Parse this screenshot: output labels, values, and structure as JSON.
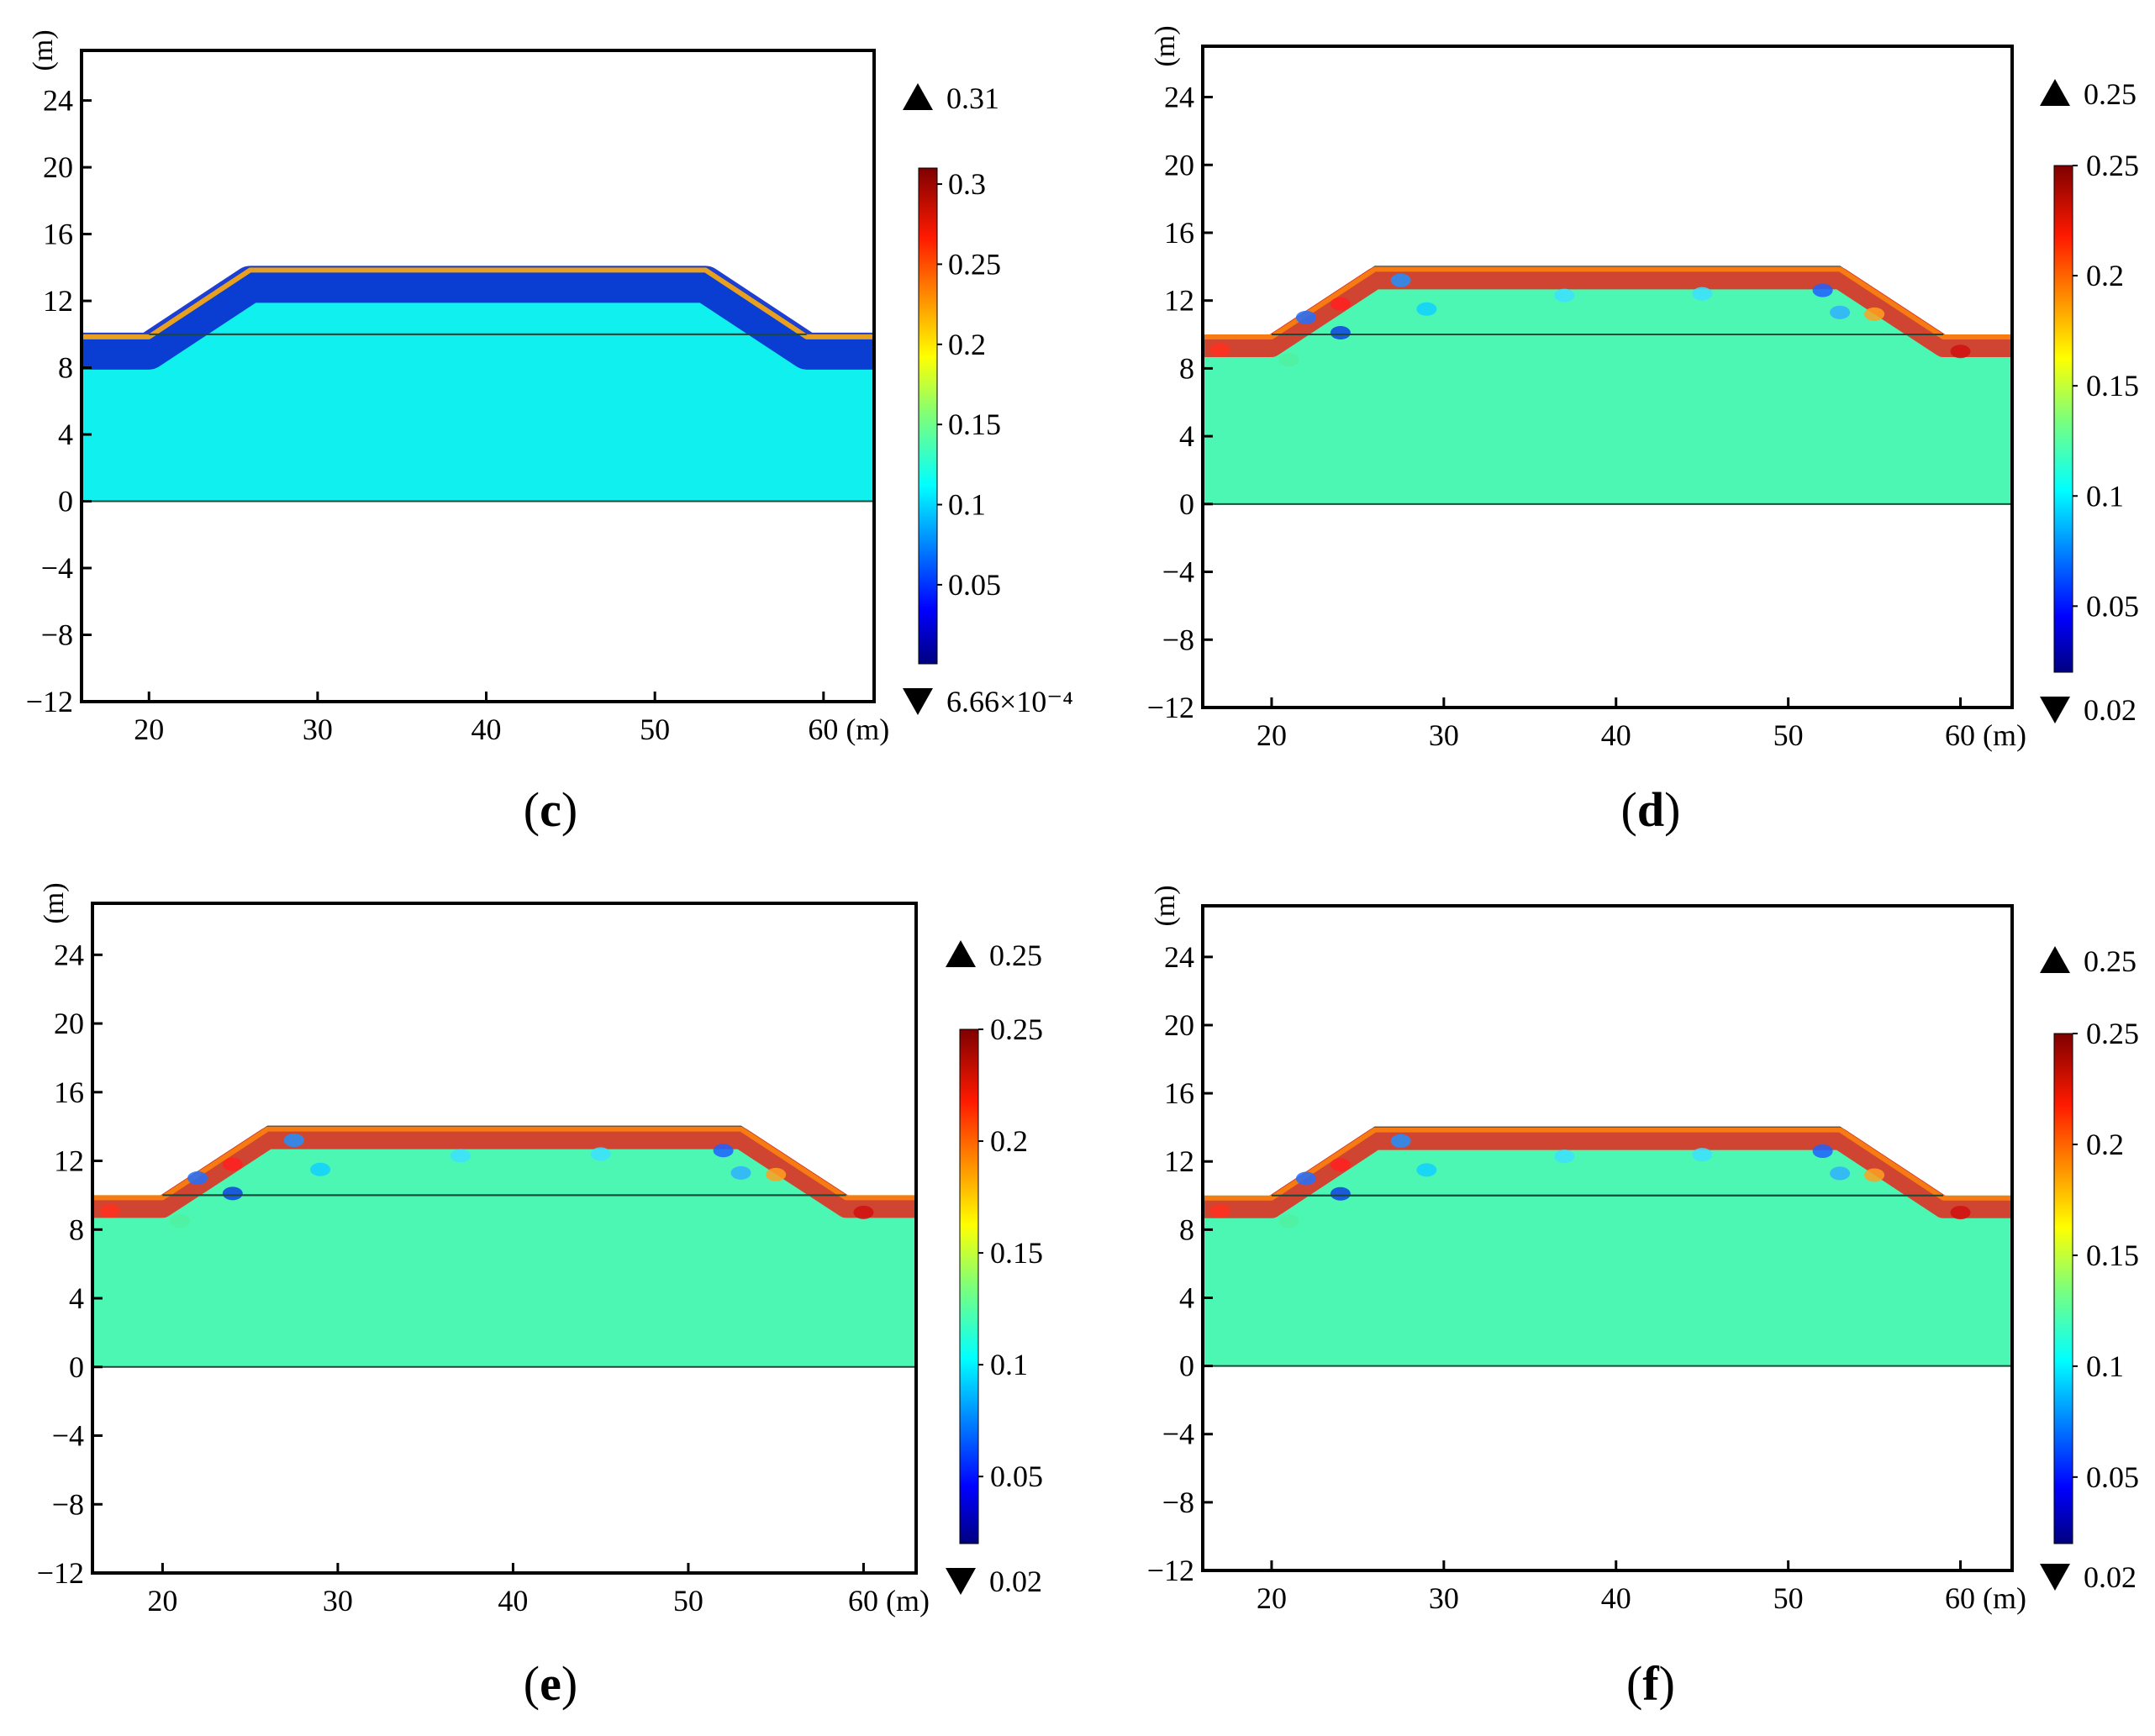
{
  "chart_data": [
    {
      "id": "c",
      "type": "heatmap",
      "panel_label": "c",
      "ylabel": "(m)",
      "xunit": "(m)",
      "xlim": [
        16,
        63
      ],
      "ylim": [
        -12,
        27
      ],
      "x_ticks": [
        20,
        30,
        40,
        50,
        60
      ],
      "x_tick_labels": [
        "20",
        "30",
        "40",
        "50",
        "60"
      ],
      "y_ticks": [
        24,
        20,
        16,
        12,
        8,
        4,
        0,
        -4,
        -8,
        -12
      ],
      "y_tick_labels": [
        "24",
        "20",
        "16",
        "12",
        "8",
        "4",
        "0",
        "−4",
        "−8",
        "−12"
      ],
      "embankment": {
        "base_y": 10,
        "crest_y": 14,
        "toe_left_x": 20,
        "crest_left_x": 26,
        "crest_right_x": 53,
        "toe_right_x": 59
      },
      "foundation": {
        "top_y": 10,
        "bottom_y": 0
      },
      "colorbar": {
        "max_label": "0.31",
        "min_label": "6.66×10⁻⁴",
        "range": [
          0.000666,
          0.31
        ],
        "ticks": [
          0.3,
          0.25,
          0.2,
          0.15,
          0.1,
          0.05
        ],
        "tick_labels": [
          "0.3",
          "0.25",
          "0.2",
          "0.15",
          "0.1",
          "0.05"
        ]
      },
      "field": {
        "background": "#10f0ee",
        "surface_layer": "#0a2fd0",
        "rim": "#e8a020"
      }
    },
    {
      "id": "d",
      "type": "heatmap",
      "panel_label": "d",
      "ylabel": "(m)",
      "xunit": "(m)",
      "xlim": [
        16,
        63
      ],
      "ylim": [
        -12,
        27
      ],
      "x_ticks": [
        20,
        30,
        40,
        50,
        60
      ],
      "x_tick_labels": [
        "20",
        "30",
        "40",
        "50",
        "60"
      ],
      "y_ticks": [
        24,
        20,
        16,
        12,
        8,
        4,
        0,
        -4,
        -8,
        -12
      ],
      "y_tick_labels": [
        "24",
        "20",
        "16",
        "12",
        "8",
        "4",
        "0",
        "−4",
        "−8",
        "−12"
      ],
      "embankment": {
        "base_y": 10,
        "crest_y": 14,
        "toe_left_x": 20,
        "crest_left_x": 26,
        "crest_right_x": 53,
        "toe_right_x": 59
      },
      "foundation": {
        "top_y": 10,
        "bottom_y": 0
      },
      "colorbar": {
        "max_label": "0.25",
        "min_label": "0.02",
        "range": [
          0.02,
          0.25
        ],
        "ticks": [
          0.25,
          0.2,
          0.15,
          0.1,
          0.05
        ],
        "tick_labels": [
          "0.25",
          "0.2",
          "0.15",
          "0.1",
          "0.05"
        ]
      },
      "field": {
        "background": "#4cf7b4",
        "surface_layer": "#e8261a",
        "rim": "#f57b12"
      }
    },
    {
      "id": "e",
      "type": "heatmap",
      "panel_label": "e",
      "ylabel": "(m)",
      "xunit": "(m)",
      "xlim": [
        16,
        63
      ],
      "ylim": [
        -12,
        27
      ],
      "x_ticks": [
        20,
        30,
        40,
        50,
        60
      ],
      "x_tick_labels": [
        "20",
        "30",
        "40",
        "50",
        "60"
      ],
      "y_ticks": [
        24,
        20,
        16,
        12,
        8,
        4,
        0,
        -4,
        -8,
        -12
      ],
      "y_tick_labels": [
        "24",
        "20",
        "16",
        "12",
        "8",
        "4",
        "0",
        "−4",
        "−8",
        "−12"
      ],
      "embankment": {
        "base_y": 10,
        "crest_y": 14,
        "toe_left_x": 20,
        "crest_left_x": 26,
        "crest_right_x": 53,
        "toe_right_x": 59
      },
      "foundation": {
        "top_y": 10,
        "bottom_y": 0
      },
      "colorbar": {
        "max_label": "0.25",
        "min_label": "0.02",
        "range": [
          0.02,
          0.25
        ],
        "ticks": [
          0.25,
          0.2,
          0.15,
          0.1,
          0.05
        ],
        "tick_labels": [
          "0.25",
          "0.2",
          "0.15",
          "0.1",
          "0.05"
        ]
      },
      "field": {
        "background": "#4cf7b4",
        "surface_layer": "#e8261a",
        "rim": "#f57b12"
      }
    },
    {
      "id": "f",
      "type": "heatmap",
      "panel_label": "f",
      "ylabel": "(m)",
      "xunit": "(m)",
      "xlim": [
        16,
        63
      ],
      "ylim": [
        -12,
        27
      ],
      "x_ticks": [
        20,
        30,
        40,
        50,
        60
      ],
      "x_tick_labels": [
        "20",
        "30",
        "40",
        "50",
        "60"
      ],
      "y_ticks": [
        24,
        20,
        16,
        12,
        8,
        4,
        0,
        -4,
        -8,
        -12
      ],
      "y_tick_labels": [
        "24",
        "20",
        "16",
        "12",
        "8",
        "4",
        "0",
        "−4",
        "−8",
        "−12"
      ],
      "embankment": {
        "base_y": 10,
        "crest_y": 14,
        "toe_left_x": 20,
        "crest_left_x": 26,
        "crest_right_x": 53,
        "toe_right_x": 59
      },
      "foundation": {
        "top_y": 10,
        "bottom_y": 0
      },
      "colorbar": {
        "max_label": "0.25",
        "min_label": "0.02",
        "range": [
          0.02,
          0.25
        ],
        "ticks": [
          0.25,
          0.2,
          0.15,
          0.1,
          0.05
        ],
        "tick_labels": [
          "0.25",
          "0.2",
          "0.15",
          "0.1",
          "0.05"
        ]
      },
      "field": {
        "background": "#4cf7b4",
        "surface_layer": "#e8261a",
        "rim": "#f57b12"
      }
    }
  ]
}
